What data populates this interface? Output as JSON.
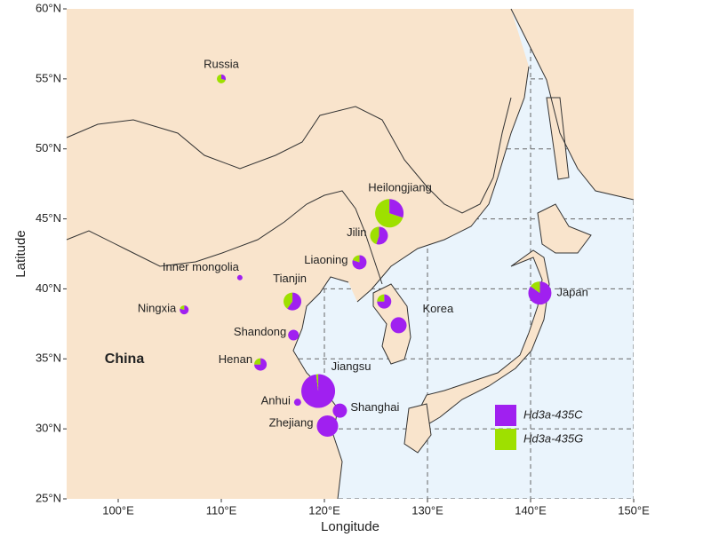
{
  "map": {
    "x_axis": {
      "label": "Longitude",
      "lim": [
        95,
        150
      ],
      "ticks": [
        {
          "value": 100,
          "label": "100°E"
        },
        {
          "value": 110,
          "label": "110°E"
        },
        {
          "value": 120,
          "label": "120°E"
        },
        {
          "value": 130,
          "label": "130°E"
        },
        {
          "value": 140,
          "label": "140°E"
        },
        {
          "value": 150,
          "label": "150°E"
        }
      ]
    },
    "y_axis": {
      "label": "Latitude",
      "lim": [
        25,
        60
      ],
      "ticks": [
        {
          "value": 25,
          "label": "25°N"
        },
        {
          "value": 30,
          "label": "30°N"
        },
        {
          "value": 35,
          "label": "35°N"
        },
        {
          "value": 40,
          "label": "40°N"
        },
        {
          "value": 45,
          "label": "45°N"
        },
        {
          "value": 50,
          "label": "50°N"
        },
        {
          "value": 55,
          "label": "55°N"
        },
        {
          "value": 60,
          "label": "60°N"
        }
      ]
    },
    "region_label": "China",
    "legend": [
      {
        "name": "Hd3a-435C",
        "color": "#a020f0"
      },
      {
        "name": "Hd3a-435G",
        "color": "#9ee000"
      }
    ],
    "sites": [
      {
        "name": "Russia",
        "lon": 110,
        "lat": 55,
        "size": 25,
        "values": [
          30,
          70
        ]
      },
      {
        "name": "Heilongjiang",
        "lon": 126.3,
        "lat": 45.4,
        "size": 256,
        "values": [
          30,
          70
        ]
      },
      {
        "name": "Jilin",
        "lon": 125.3,
        "lat": 43.8,
        "size": 100,
        "values": [
          55,
          45
        ]
      },
      {
        "name": "Liaoning",
        "lon": 123.4,
        "lat": 41.9,
        "size": 64,
        "values": [
          80,
          20
        ]
      },
      {
        "name": "Inner mongolia",
        "lon": 111.8,
        "lat": 40.8,
        "size": 9,
        "values": [
          100,
          0
        ]
      },
      {
        "name": "Tianjin",
        "lon": 116.9,
        "lat": 39.1,
        "size": 100,
        "values": [
          60,
          40
        ]
      },
      {
        "name": "Ningxia",
        "lon": 106.4,
        "lat": 38.5,
        "size": 25,
        "values": [
          80,
          20
        ]
      },
      {
        "name": null,
        "lon": 125.8,
        "lat": 39.1,
        "size": 64,
        "values": [
          75,
          25
        ]
      },
      {
        "name": "Korea",
        "lon": 127.2,
        "lat": 37.4,
        "size": 81,
        "values": [
          100,
          0
        ]
      },
      {
        "name": "Shandong",
        "lon": 117,
        "lat": 36.7,
        "size": 36,
        "values": [
          100,
          0
        ]
      },
      {
        "name": "Henan",
        "lon": 113.8,
        "lat": 34.6,
        "size": 49,
        "values": [
          75,
          25
        ]
      },
      {
        "name": "Jiangsu",
        "lon": 119.4,
        "lat": 32.7,
        "size": 361,
        "values": [
          98,
          2
        ]
      },
      {
        "name": "Anhui",
        "lon": 117.4,
        "lat": 31.9,
        "size": 16,
        "values": [
          100,
          0
        ]
      },
      {
        "name": "Shanghai",
        "lon": 121.5,
        "lat": 31.3,
        "size": 64,
        "values": [
          100,
          0
        ]
      },
      {
        "name": "Zhejiang",
        "lon": 120.3,
        "lat": 30.2,
        "size": 144,
        "values": [
          100,
          0
        ]
      },
      {
        "name": "Japan",
        "lon": 140.9,
        "lat": 39.7,
        "size": 169,
        "values": [
          85,
          15
        ]
      }
    ]
  }
}
